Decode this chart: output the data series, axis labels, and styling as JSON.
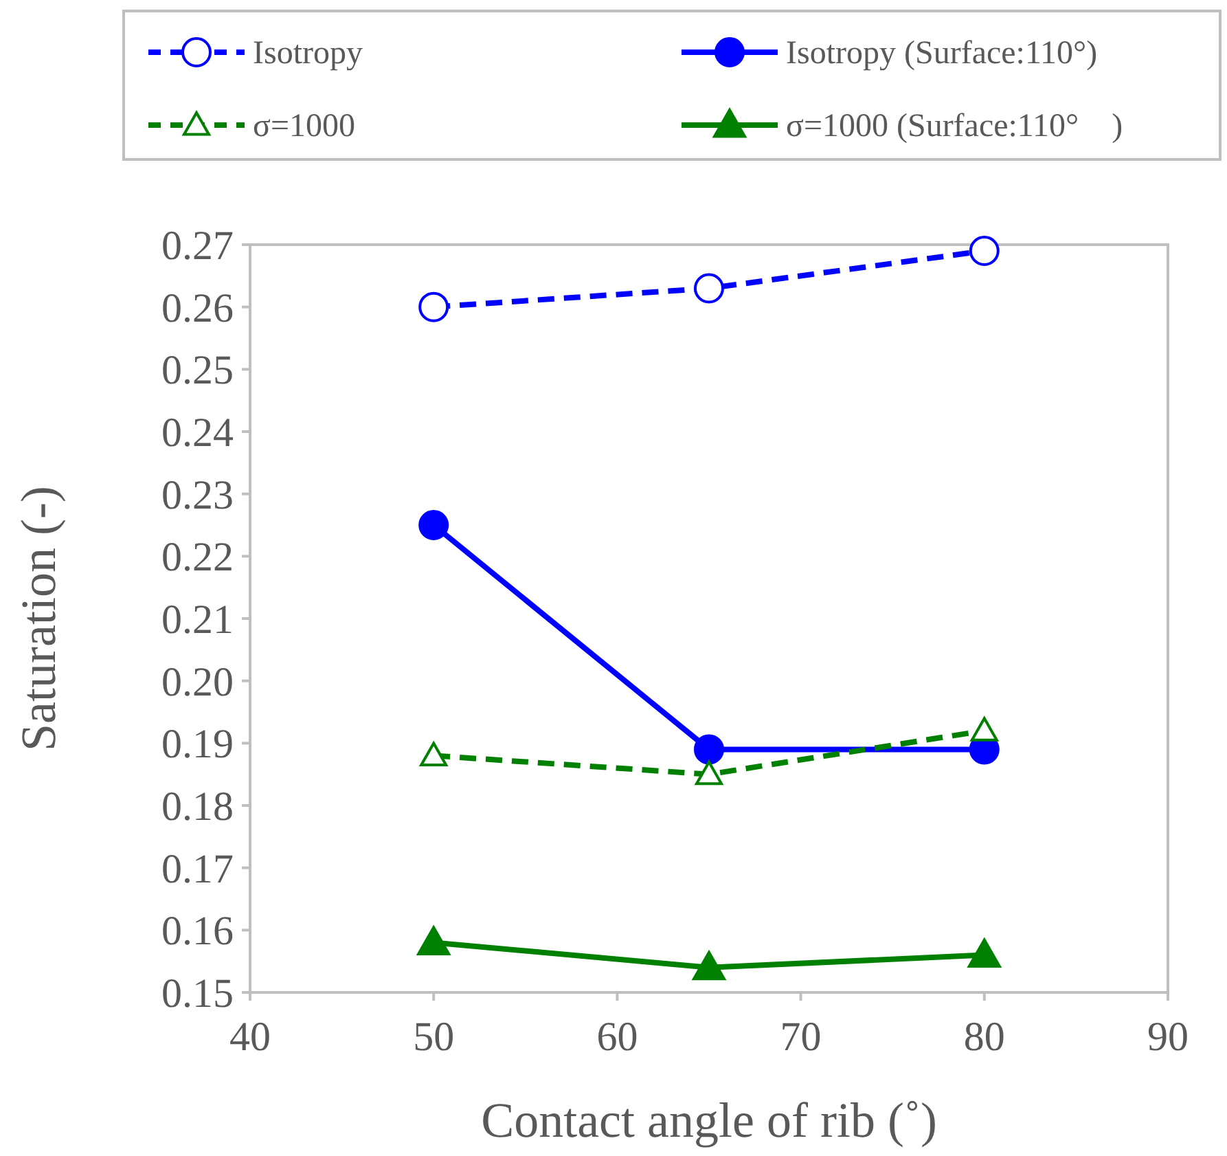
{
  "chart_data": {
    "type": "line",
    "xlabel": "Contact angle of rib (˚)",
    "ylabel": "Saturation (-)",
    "x": [
      50,
      65,
      80
    ],
    "xlim": [
      40,
      90
    ],
    "xticks": [
      40,
      50,
      60,
      70,
      80,
      90
    ],
    "ylim": [
      0.15,
      0.27
    ],
    "yticks": [
      {
        "value": 0.15,
        "label": "0.15"
      },
      {
        "value": 0.16,
        "label": "0.16"
      },
      {
        "value": 0.17,
        "label": "0.17"
      },
      {
        "value": 0.18,
        "label": "0.18"
      },
      {
        "value": 0.19,
        "label": "0.19"
      },
      {
        "value": 0.2,
        "label": "0.20"
      },
      {
        "value": 0.21,
        "label": "0.21"
      },
      {
        "value": 0.22,
        "label": "0.22"
      },
      {
        "value": 0.23,
        "label": "0.23"
      },
      {
        "value": 0.24,
        "label": "0.24"
      },
      {
        "value": 0.25,
        "label": "0.25"
      },
      {
        "value": 0.26,
        "label": "0.26"
      },
      {
        "value": 0.27,
        "label": "0.27"
      }
    ],
    "grid": false,
    "legend": "top",
    "series": [
      {
        "name": "Isotropy",
        "color": "#0000ff",
        "values": [
          0.26,
          0.263,
          0.269
        ],
        "marker": "circle",
        "line_style": "dashed"
      },
      {
        "name": "Isotropy (Surface:110°)",
        "color": "#0000ff",
        "values": [
          0.225,
          0.189,
          0.189
        ],
        "marker": "circle",
        "line_style": "solid"
      },
      {
        "name": "σ=1000",
        "color": "#008000",
        "values": [
          0.188,
          0.185,
          0.192
        ],
        "marker": "triangle",
        "line_style": "dashed"
      },
      {
        "name": "σ=1000 (Surface:110°　)",
        "color": "#008000",
        "values": [
          0.158,
          0.154,
          0.156
        ],
        "marker": "triangle",
        "line_style": "solid"
      }
    ]
  }
}
